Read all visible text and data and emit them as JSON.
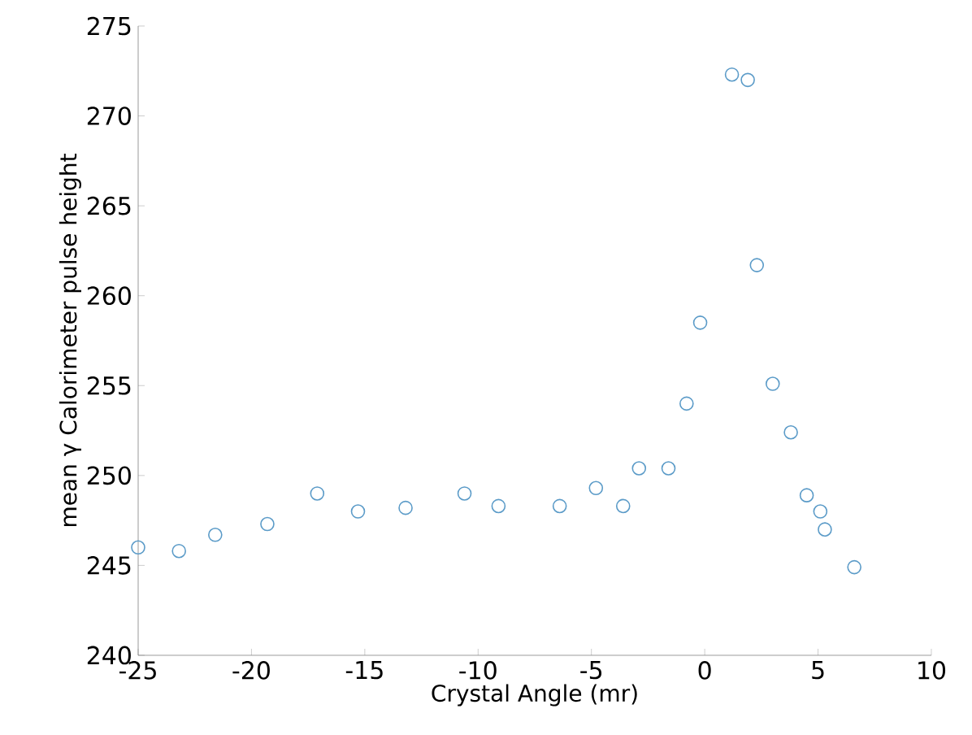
{
  "chart_data": {
    "type": "scatter",
    "xlabel": "Crystal Angle  (mr)",
    "ylabel": "mean γ Calorimeter pulse height",
    "x": [
      -25,
      -23.2,
      -21.6,
      -19.3,
      -17.1,
      -15.3,
      -13.2,
      -10.6,
      -9.1,
      -6.4,
      -4.8,
      -3.6,
      -2.9,
      -1.6,
      -0.8,
      -0.2,
      1.2,
      1.9,
      2.3,
      3.0,
      3.8,
      4.5,
      5.1,
      5.3,
      6.6
    ],
    "series": [
      {
        "color": "#5b9bc8",
        "values": [
          246.0,
          245.8,
          246.7,
          247.3,
          249.0,
          248.0,
          248.2,
          249.0,
          248.3,
          248.3,
          249.3,
          248.3,
          250.4,
          250.4,
          254.0,
          258.5,
          272.3,
          272.0,
          261.7,
          255.1,
          252.4,
          248.9,
          248.0,
          247.0,
          244.9
        ]
      }
    ],
    "xlim": [
      -25,
      10
    ],
    "ylim": [
      240,
      275
    ],
    "xticks": [
      -25,
      -20,
      -15,
      -10,
      -5,
      0,
      5,
      10
    ],
    "yticks": [
      240,
      245,
      250,
      255,
      260,
      265,
      270,
      275
    ],
    "marker": "circle",
    "grid": false
  }
}
